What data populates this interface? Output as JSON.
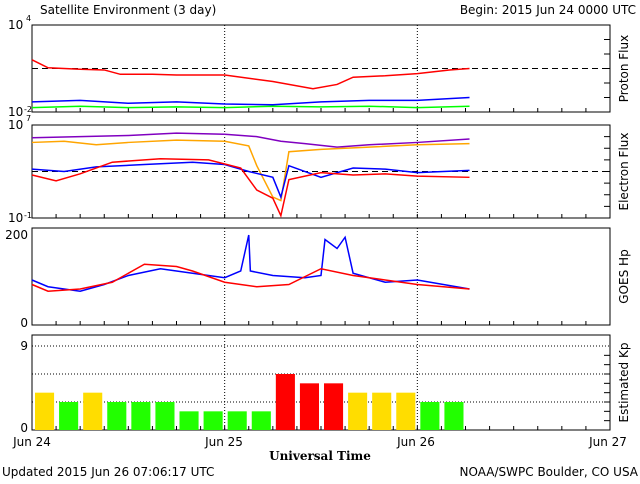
{
  "chart_data": {
    "type": "line",
    "title": "Satellite Environment (3 day)",
    "begin": "Begin:  2015 Jun 24 0000 UTC",
    "xlabel": "Universal Time",
    "x_ticks": [
      "Jun 24",
      "Jun 25",
      "Jun 26",
      "Jun 27"
    ],
    "x_range_hours": [
      0,
      72
    ],
    "footer_left": "Updated 2015 Jun 26 07:06:17 UTC",
    "footer_right": "NOAA/SWPC Boulder, CO USA",
    "panels": [
      {
        "name": "proton",
        "ylabel": "Proton Flux",
        "scale": "log",
        "ylim": [
          -2,
          4
        ],
        "tick_labels": [
          "10",
          "4",
          "10",
          "-2"
        ],
        "threshold": 1,
        "series": [
          {
            "name": "red",
            "color": "#ff0000",
            "points": [
              [
                0,
                1.6
              ],
              [
                2,
                1.05
              ],
              [
                6,
                0.95
              ],
              [
                9,
                0.9
              ],
              [
                11,
                0.6
              ],
              [
                15,
                0.6
              ],
              [
                18,
                0.55
              ],
              [
                24,
                0.55
              ],
              [
                30,
                0.1
              ],
              [
                35,
                -0.4
              ],
              [
                38,
                -0.1
              ],
              [
                40,
                0.4
              ],
              [
                44,
                0.5
              ],
              [
                48,
                0.65
              ],
              [
                52,
                0.9
              ],
              [
                54.5,
                1.0
              ]
            ]
          },
          {
            "name": "blue",
            "color": "#0000ff",
            "points": [
              [
                0,
                -1.3
              ],
              [
                6,
                -1.2
              ],
              [
                12,
                -1.4
              ],
              [
                18,
                -1.3
              ],
              [
                24,
                -1.45
              ],
              [
                30,
                -1.5
              ],
              [
                36,
                -1.3
              ],
              [
                42,
                -1.2
              ],
              [
                48,
                -1.2
              ],
              [
                54.5,
                -1.0
              ]
            ]
          },
          {
            "name": "green",
            "color": "#00ff00",
            "points": [
              [
                0,
                -1.7
              ],
              [
                6,
                -1.6
              ],
              [
                12,
                -1.7
              ],
              [
                18,
                -1.65
              ],
              [
                24,
                -1.7
              ],
              [
                30,
                -1.6
              ],
              [
                36,
                -1.65
              ],
              [
                42,
                -1.6
              ],
              [
                48,
                -1.7
              ],
              [
                54.5,
                -1.6
              ]
            ]
          }
        ]
      },
      {
        "name": "electron",
        "ylabel": "Electron Flux",
        "scale": "log",
        "ylim": [
          -1,
          7
        ],
        "tick_labels": [
          "10",
          "7",
          "10",
          "-1"
        ],
        "threshold": 3,
        "series": [
          {
            "name": "purple",
            "color": "#8000c0",
            "points": [
              [
                0,
                5.9
              ],
              [
                6,
                6.0
              ],
              [
                12,
                6.1
              ],
              [
                18,
                6.3
              ],
              [
                24,
                6.2
              ],
              [
                28,
                6.0
              ],
              [
                31,
                5.6
              ],
              [
                34,
                5.4
              ],
              [
                38,
                5.1
              ],
              [
                42,
                5.3
              ],
              [
                48,
                5.5
              ],
              [
                54.5,
                5.8
              ]
            ]
          },
          {
            "name": "orange",
            "color": "#ffa500",
            "points": [
              [
                0,
                5.5
              ],
              [
                4,
                5.6
              ],
              [
                8,
                5.3
              ],
              [
                12,
                5.5
              ],
              [
                18,
                5.7
              ],
              [
                24,
                5.6
              ],
              [
                27,
                5.2
              ],
              [
                28,
                3.5
              ],
              [
                30,
                0.8
              ],
              [
                31,
                0.5
              ],
              [
                32,
                4.7
              ],
              [
                36,
                4.9
              ],
              [
                42,
                5.1
              ],
              [
                48,
                5.3
              ],
              [
                54.5,
                5.4
              ]
            ]
          },
          {
            "name": "blue",
            "color": "#0000ff",
            "points": [
              [
                0,
                3.2
              ],
              [
                4,
                3.0
              ],
              [
                8,
                3.4
              ],
              [
                14,
                3.6
              ],
              [
                20,
                3.8
              ],
              [
                24,
                3.6
              ],
              [
                27,
                3.0
              ],
              [
                30,
                2.5
              ],
              [
                31,
                0.8
              ],
              [
                32,
                3.5
              ],
              [
                36,
                2.5
              ],
              [
                40,
                3.3
              ],
              [
                44,
                3.2
              ],
              [
                48,
                2.9
              ],
              [
                54.5,
                3.1
              ]
            ]
          },
          {
            "name": "red",
            "color": "#ff0000",
            "points": [
              [
                0,
                2.7
              ],
              [
                3,
                2.2
              ],
              [
                6,
                2.8
              ],
              [
                10,
                3.8
              ],
              [
                16,
                4.1
              ],
              [
                22,
                4.0
              ],
              [
                26,
                3.3
              ],
              [
                28,
                1.4
              ],
              [
                30,
                0.7
              ],
              [
                31,
                -0.8
              ],
              [
                32,
                2.3
              ],
              [
                36,
                2.9
              ],
              [
                40,
                2.7
              ],
              [
                44,
                2.8
              ],
              [
                48,
                2.6
              ],
              [
                54.5,
                2.5
              ]
            ]
          }
        ]
      },
      {
        "name": "hp",
        "ylabel": "GOES Hp",
        "scale": "linear",
        "ylim": [
          0,
          200
        ],
        "tick_labels": [
          "200",
          "0"
        ],
        "series": [
          {
            "name": "blue",
            "color": "#0000ff",
            "points": [
              [
                0,
                100
              ],
              [
                2,
                85
              ],
              [
                6,
                75
              ],
              [
                9,
                90
              ],
              [
                12,
                110
              ],
              [
                16,
                125
              ],
              [
                20,
                115
              ],
              [
                24,
                105
              ],
              [
                26,
                120
              ],
              [
                27,
                200
              ],
              [
                27.2,
                120
              ],
              [
                30,
                110
              ],
              [
                34,
                105
              ],
              [
                36,
                110
              ],
              [
                36.5,
                190
              ],
              [
                38,
                170
              ],
              [
                39,
                195
              ],
              [
                40,
                115
              ],
              [
                44,
                95
              ],
              [
                48,
                100
              ],
              [
                54.5,
                80
              ]
            ]
          },
          {
            "name": "red",
            "color": "#ff0000",
            "points": [
              [
                0,
                90
              ],
              [
                2,
                75
              ],
              [
                6,
                80
              ],
              [
                10,
                95
              ],
              [
                14,
                135
              ],
              [
                18,
                130
              ],
              [
                20,
                120
              ],
              [
                24,
                95
              ],
              [
                28,
                85
              ],
              [
                32,
                90
              ],
              [
                36,
                125
              ],
              [
                40,
                110
              ],
              [
                44,
                100
              ],
              [
                48,
                90
              ],
              [
                54.5,
                80
              ]
            ]
          }
        ]
      },
      {
        "name": "kp",
        "ylabel": "Estimated Kp",
        "scale": "linear",
        "ylim": [
          0,
          9
        ],
        "tick_labels": [
          "9",
          "0"
        ],
        "type": "bar",
        "bar_hours": 3,
        "values": [
          4,
          3,
          4,
          3,
          3,
          3,
          2,
          2,
          2,
          2,
          6,
          5,
          5,
          4,
          4,
          4,
          3,
          3
        ],
        "colors": {
          "low": "#22ff00",
          "moderate": "#ffdd00",
          "storm": "#ff0000"
        }
      }
    ]
  }
}
